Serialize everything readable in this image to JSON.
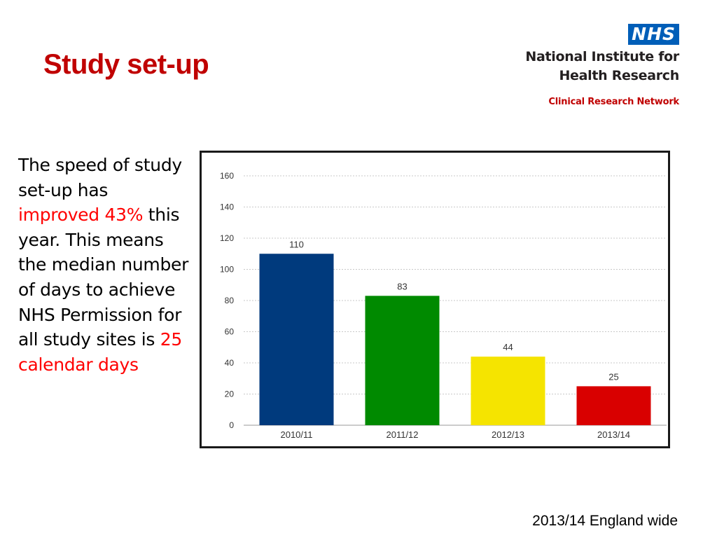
{
  "slide": {
    "title": "Study set-up",
    "footer": "2013/14 England wide"
  },
  "logo": {
    "badge": "NHS",
    "line1": "National Institute for",
    "line2": "Health Research",
    "sub": "Clinical Research Network",
    "badge_color": "#005eb8"
  },
  "body": {
    "t1": "The speed of study set-up has ",
    "t2": "improved 43%",
    "t3": " this year. This means the median number of days to achieve NHS Permission for all study sites is ",
    "t4": "25 calendar days"
  },
  "chart_data": {
    "type": "bar",
    "categories": [
      "2010/11",
      "2011/12",
      "2012/13",
      "2013/14"
    ],
    "values": [
      110,
      83,
      44,
      25
    ],
    "colors": [
      "#003a7d",
      "#008a00",
      "#f5e400",
      "#d90000"
    ],
    "ylim": [
      0,
      160
    ],
    "yticks": [
      0,
      20,
      40,
      60,
      80,
      100,
      120,
      140,
      160
    ],
    "grid": true,
    "data_labels": true,
    "title": "",
    "xlabel": "",
    "ylabel": ""
  }
}
